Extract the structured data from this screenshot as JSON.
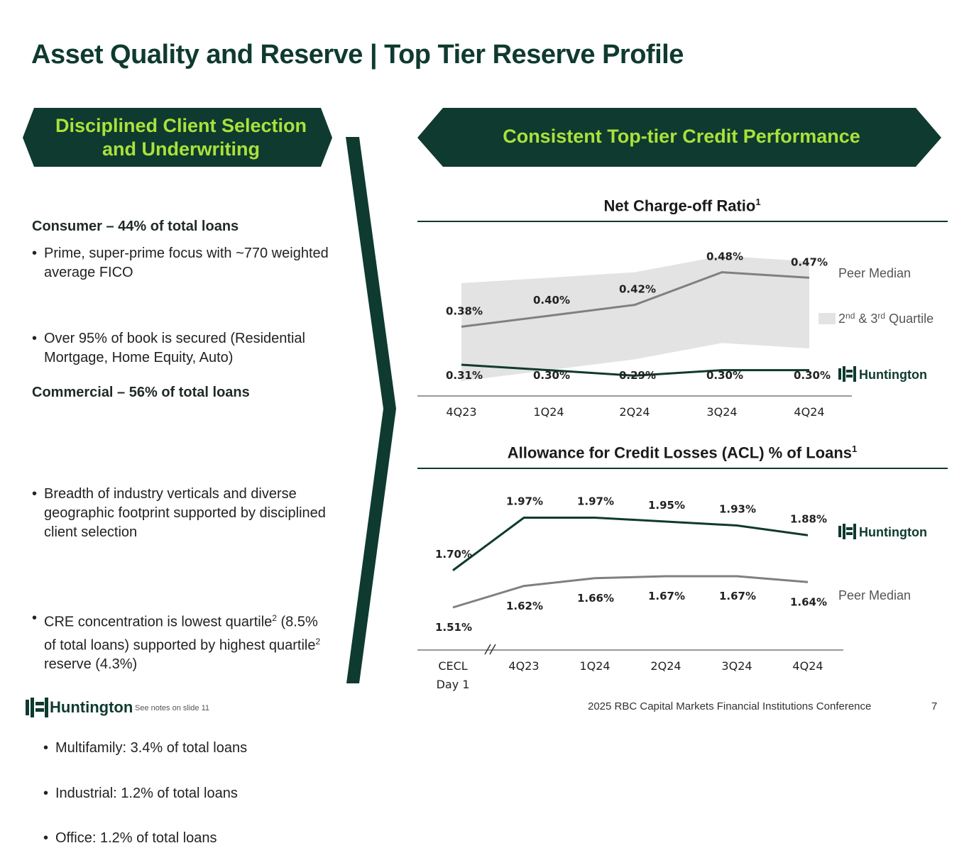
{
  "title": "Asset Quality and Reserve | Top Tier Reserve Profile",
  "left_banner": {
    "line1": "Disciplined Client Selection",
    "line2": "and Underwriting"
  },
  "right_banner": "Consistent Top-tier Credit Performance",
  "consumer": {
    "heading": "Consumer – 44% of total loans",
    "bullets": [
      "Prime, super-prime focus with ~770 weighted average FICO",
      "Over 95% of book is secured (Residential Mortgage, Home Equity, Auto)"
    ]
  },
  "commercial": {
    "heading": "Commercial – 56% of total loans",
    "bullet1": "Breadth of industry verticals and diverse geographic footprint supported by disciplined client selection",
    "bullet2_a": "CRE concentration is lowest quartile",
    "bullet2_sup1": "2",
    "bullet2_b": " (8.5% of total loans) supported by highest quartile",
    "bullet2_sup2": "2",
    "bullet2_c": " reserve (4.3%)",
    "sub_bullets": [
      "Multifamily: 3.4% of total loans",
      "Industrial: 1.2% of total loans",
      "Office: 1.2% of total loans"
    ]
  },
  "legend": {
    "peer_median": "Peer Median",
    "quartile_pre": "2",
    "quartile_sup1": "nd",
    "quartile_mid": " & 3",
    "quartile_sup2": "rd",
    "quartile_post": " Quartile",
    "huntington": "Huntington"
  },
  "footer": {
    "logo_text": "Huntington",
    "notes": "See notes on slide 11",
    "conference": "2025 RBC Capital Markets Financial Institutions Conference",
    "page": "7"
  },
  "colors": {
    "dark_green": "#0f3a2f",
    "accent_green": "#a9e23b",
    "peer_gray": "#808080",
    "band_gray": "#e3e3e3"
  },
  "chart_data": [
    {
      "type": "line",
      "title": "Net Charge-off Ratio",
      "title_sup": "1",
      "categories": [
        "4Q23",
        "1Q24",
        "2Q24",
        "3Q24",
        "4Q24"
      ],
      "series": [
        {
          "name": "Huntington",
          "values": [
            0.31,
            0.3,
            0.29,
            0.3,
            0.3
          ],
          "labels": [
            "0.31%",
            "0.30%",
            "0.29%",
            "0.30%",
            "0.30%"
          ]
        },
        {
          "name": "Peer Median",
          "values": [
            0.38,
            0.4,
            0.42,
            0.48,
            0.47
          ],
          "labels": [
            "0.38%",
            "0.40%",
            "0.42%",
            "0.48%",
            "0.47%"
          ]
        }
      ],
      "band": {
        "name": "2nd & 3rd Quartile",
        "upper": [
          0.46,
          0.47,
          0.48,
          0.51,
          0.5
        ],
        "lower": [
          0.28,
          0.3,
          0.32,
          0.35,
          0.34
        ]
      },
      "ylim": [
        0.25,
        0.55
      ]
    },
    {
      "type": "line",
      "title": "Allowance for Credit Losses (ACL) % of Loans",
      "title_sup": "1",
      "categories": [
        "CECL Day 1",
        "4Q23",
        "1Q24",
        "2Q24",
        "3Q24",
        "4Q24"
      ],
      "categories_lines": [
        [
          "CECL",
          "Day 1"
        ],
        [
          "4Q23"
        ],
        [
          "1Q24"
        ],
        [
          "2Q24"
        ],
        [
          "3Q24"
        ],
        [
          "4Q24"
        ]
      ],
      "series": [
        {
          "name": "Huntington",
          "values": [
            1.7,
            1.97,
            1.97,
            1.95,
            1.93,
            1.88
          ],
          "labels": [
            "1.70%",
            "1.97%",
            "1.97%",
            "1.95%",
            "1.93%",
            "1.88%"
          ]
        },
        {
          "name": "Peer Median",
          "values": [
            1.51,
            1.62,
            1.66,
            1.67,
            1.67,
            1.64
          ],
          "labels": [
            "1.51%",
            "1.62%",
            "1.66%",
            "1.67%",
            "1.67%",
            "1.64%"
          ]
        }
      ],
      "axis_break_after_index": 0,
      "ylim": [
        1.35,
        2.15
      ]
    }
  ]
}
